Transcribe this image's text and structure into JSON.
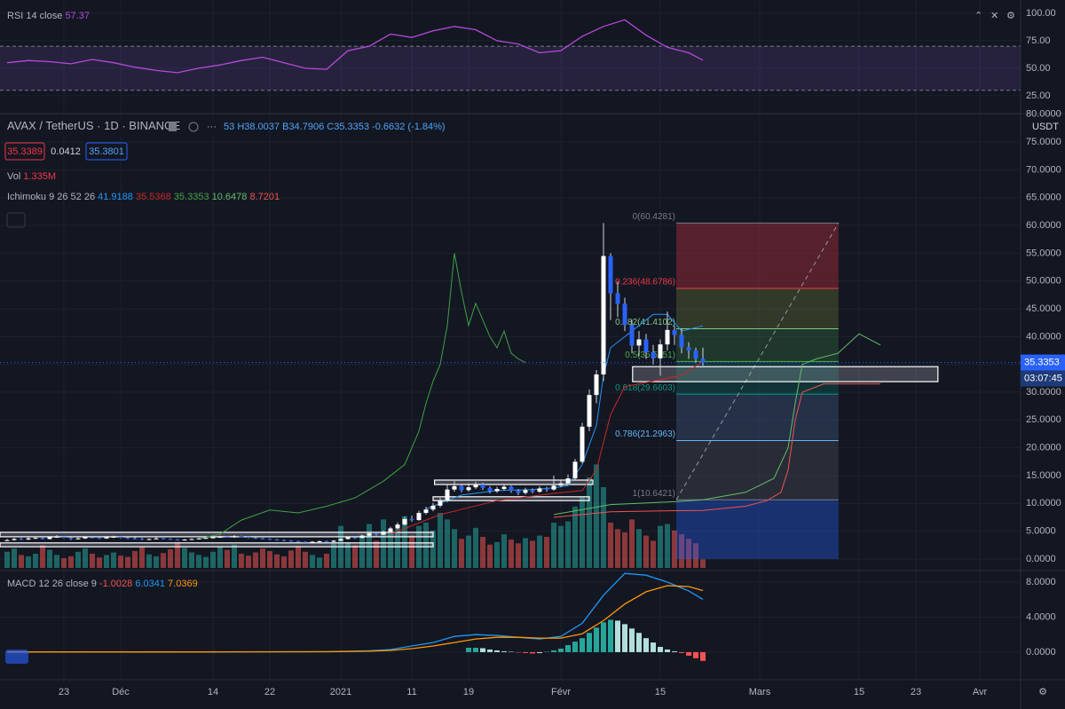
{
  "header": {
    "symbol": "AVAX / TetherUS",
    "interval": "1D",
    "exchange": "BINANCE",
    "open_cut": "53",
    "ohlc_labels": [
      "H",
      "B",
      "C"
    ],
    "change": "-0.6632 (-1.84%)",
    "bid": "35.3389",
    "spread": "0.0412",
    "ask": "35.3801",
    "vol_label": "Vol",
    "volume_label": "1.335M",
    "ichimoku_label": "Ichimoku 9 26 52 26",
    "countdown": "03:07:45",
    "currency": "USDT",
    "rsi_label": "RSI 14 close",
    "macd_label": "MACD 12 26 close 9"
  },
  "x_axis": {
    "xlim": [
      0,
      144
    ],
    "xticks": [
      {
        "value": 9,
        "label": "23"
      },
      {
        "value": 17,
        "label": "Déc"
      },
      {
        "value": 30,
        "label": "14"
      },
      {
        "value": 38,
        "label": "22"
      },
      {
        "value": 48,
        "label": "2021"
      },
      {
        "value": 58,
        "label": "11"
      },
      {
        "value": 66,
        "label": "19"
      },
      {
        "value": 79,
        "label": "Févr"
      },
      {
        "value": 93,
        "label": "15"
      },
      {
        "value": 107,
        "label": "Mars"
      },
      {
        "value": 121,
        "label": "15"
      },
      {
        "value": 129,
        "label": "23"
      },
      {
        "value": 138,
        "label": "Avr"
      }
    ]
  },
  "chart_data": [
    {
      "type": "line",
      "color": "#b54ad8",
      "band": [
        30,
        70
      ],
      "band_color": "rgba(126,87,194,0.18)",
      "ylim": [
        8.8,
        112
      ],
      "yticks": [
        {
          "value": 100,
          "label": "100.00"
        },
        {
          "value": 75,
          "label": "75.00"
        },
        {
          "value": 50,
          "label": "50.00"
        },
        {
          "value": 25,
          "label": "25.00"
        }
      ],
      "x": [
        1,
        4,
        7,
        10,
        13,
        16,
        19,
        22,
        25,
        28,
        31,
        34,
        37,
        40,
        43,
        46,
        49,
        52,
        55,
        58,
        61,
        64,
        67,
        70,
        73,
        76,
        79,
        82,
        85,
        88,
        91,
        94,
        97,
        99
      ],
      "values": [
        55,
        57,
        56,
        54,
        58,
        55,
        51,
        48,
        46,
        50,
        53,
        57,
        60,
        55,
        50,
        49,
        66,
        70,
        81,
        78,
        84,
        88,
        85,
        75,
        72,
        64,
        66,
        79,
        88,
        94,
        80,
        69,
        64,
        57.37
      ]
    },
    {
      "type": "candlestick",
      "ylim": [
        -1.6,
        79.8
      ],
      "up_color": "#ffffff",
      "down_color": "#2962ff",
      "volume_up_color": "rgba(38,166,154,0.55)",
      "volume_down_color": "rgba(239,83,80,0.55)",
      "volume_ylim": [
        0,
        70
      ],
      "grid": true,
      "yticks": [
        {
          "value": 0,
          "label": "0.0000"
        },
        {
          "value": 5,
          "label": "5.0000"
        },
        {
          "value": 10,
          "label": "10.0000"
        },
        {
          "value": 15,
          "label": "15.0000"
        },
        {
          "value": 20,
          "label": "20.0000"
        },
        {
          "value": 25,
          "label": "25.0000"
        },
        {
          "value": 30,
          "label": "30.0000"
        },
        {
          "value": 35,
          "label": "35.0000"
        },
        {
          "value": 40,
          "label": "40.0000"
        },
        {
          "value": 45,
          "label": "45.0000"
        },
        {
          "value": 50,
          "label": "50.0000"
        },
        {
          "value": 55,
          "label": "55.0000"
        },
        {
          "value": 60,
          "label": "60.0000"
        },
        {
          "value": 65,
          "label": "65.0000"
        },
        {
          "value": 70,
          "label": "70.0000"
        },
        {
          "value": 75,
          "label": "75.0000"
        },
        {
          "value": 80,
          "label": "80.0000"
        }
      ],
      "x": [
        1,
        2,
        3,
        4,
        5,
        6,
        7,
        8,
        9,
        10,
        11,
        12,
        13,
        14,
        15,
        16,
        17,
        18,
        19,
        20,
        21,
        22,
        23,
        24,
        25,
        26,
        27,
        28,
        29,
        30,
        31,
        32,
        33,
        34,
        35,
        36,
        37,
        38,
        39,
        40,
        41,
        42,
        43,
        44,
        45,
        46,
        47,
        48,
        49,
        50,
        51,
        52,
        53,
        54,
        55,
        56,
        57,
        58,
        59,
        60,
        61,
        62,
        63,
        64,
        65,
        66,
        67,
        68,
        69,
        70,
        71,
        72,
        73,
        74,
        75,
        76,
        77,
        78,
        79,
        80,
        81,
        82,
        83,
        84,
        85,
        86,
        87,
        88,
        89,
        90,
        91,
        92,
        93,
        94,
        95,
        96,
        97,
        98,
        99
      ],
      "open": [
        3.3,
        3.4,
        3.6,
        3.5,
        3.7,
        3.8,
        3.6,
        3.9,
        4.0,
        3.8,
        3.6,
        3.7,
        3.9,
        3.8,
        3.7,
        3.9,
        4.0,
        3.8,
        3.7,
        3.6,
        3.5,
        3.6,
        3.7,
        3.6,
        3.5,
        3.4,
        3.5,
        3.6,
        3.7,
        3.8,
        3.9,
        4.0,
        3.9,
        4.1,
        4.0,
        3.8,
        3.7,
        3.6,
        3.5,
        3.4,
        3.3,
        3.2,
        3.1,
        3.0,
        3.1,
        3.2,
        3.1,
        3.3,
        3.6,
        3.9,
        3.8,
        4.2,
        4.6,
        4.4,
        4.9,
        5.5,
        6.2,
        7.2,
        7.0,
        8.3,
        8.9,
        9.6,
        10.5,
        12.5,
        13.1,
        12.4,
        12.9,
        13.4,
        12.8,
        12.2,
        12.6,
        13.0,
        12.3,
        11.9,
        12.4,
        12.1,
        12.7,
        12.5,
        13.2,
        13.6,
        14.5,
        17.5,
        23.8,
        29.5,
        33.2,
        54.5,
        47.8,
        45.9,
        42.1,
        38.4,
        39.5,
        37.2,
        36.1,
        38.6,
        41.2,
        40.3,
        38.1,
        37.5,
        35.9985
      ],
      "high": [
        3.6,
        3.8,
        3.8,
        3.9,
        4.0,
        4.0,
        4.1,
        4.3,
        4.1,
        3.9,
        3.9,
        4.1,
        4.0,
        4.0,
        4.1,
        4.2,
        4.1,
        3.9,
        3.9,
        3.8,
        3.7,
        3.9,
        3.8,
        3.7,
        3.6,
        3.6,
        3.7,
        3.8,
        3.9,
        4.1,
        4.2,
        4.1,
        4.3,
        4.2,
        4.1,
        3.9,
        3.8,
        3.7,
        3.6,
        3.5,
        3.4,
        3.3,
        3.2,
        3.2,
        3.3,
        3.3,
        3.4,
        3.8,
        4.1,
        4.1,
        4.4,
        4.8,
        4.8,
        5.1,
        5.8,
        6.6,
        7.6,
        7.8,
        8.7,
        9.4,
        10.1,
        11.0,
        13.4,
        14.0,
        13.5,
        13.6,
        13.9,
        13.7,
        13.1,
        13.0,
        13.5,
        13.2,
        12.6,
        12.8,
        12.7,
        13.1,
        13.0,
        15.0,
        14.2,
        15.2,
        18.0,
        24.5,
        30.5,
        34.0,
        60.4281,
        55.0,
        50.0,
        47.0,
        43.0,
        41.0,
        40.5,
        38.5,
        39.5,
        44.5,
        42.0,
        41.5,
        39.0,
        38.0,
        38.0037
      ],
      "low": [
        3.2,
        3.3,
        3.4,
        3.4,
        3.6,
        3.5,
        3.5,
        3.8,
        3.7,
        3.4,
        3.5,
        3.6,
        3.7,
        3.6,
        3.6,
        3.8,
        3.7,
        3.6,
        3.5,
        3.4,
        3.4,
        3.5,
        3.5,
        3.4,
        3.3,
        3.3,
        3.4,
        3.5,
        3.6,
        3.7,
        3.8,
        3.8,
        3.8,
        3.9,
        3.7,
        3.6,
        3.5,
        3.4,
        3.3,
        3.2,
        3.1,
        3.0,
        2.9,
        2.9,
        3.0,
        3.0,
        3.0,
        3.2,
        3.5,
        3.6,
        3.7,
        4.1,
        4.2,
        4.3,
        4.8,
        5.3,
        6.0,
        6.7,
        6.9,
        8.0,
        8.6,
        9.3,
        10.2,
        12.1,
        12.0,
        12.1,
        12.6,
        12.4,
        11.8,
        11.9,
        12.3,
        11.9,
        11.5,
        11.6,
        11.8,
        11.9,
        12.1,
        12.3,
        12.9,
        13.3,
        14.2,
        17.2,
        23.0,
        28.0,
        32.0,
        43.0,
        43.5,
        41.0,
        37.0,
        36.5,
        36.0,
        35.0,
        33.0,
        37.5,
        38.5,
        37.0,
        36.0,
        35.2,
        34.7906
      ],
      "close": [
        3.4,
        3.6,
        3.5,
        3.7,
        3.8,
        3.6,
        3.9,
        4.0,
        3.8,
        3.6,
        3.7,
        3.9,
        3.8,
        3.7,
        3.9,
        4.0,
        3.8,
        3.7,
        3.6,
        3.5,
        3.6,
        3.7,
        3.6,
        3.5,
        3.4,
        3.5,
        3.6,
        3.7,
        3.8,
        3.9,
        4.0,
        3.9,
        4.1,
        4.0,
        3.8,
        3.7,
        3.6,
        3.5,
        3.4,
        3.3,
        3.2,
        3.1,
        3.0,
        3.1,
        3.2,
        3.1,
        3.3,
        3.6,
        3.9,
        3.8,
        4.2,
        4.6,
        4.4,
        4.9,
        5.5,
        6.2,
        7.2,
        7.0,
        8.3,
        8.9,
        9.6,
        10.5,
        12.5,
        13.1,
        12.4,
        12.9,
        13.4,
        12.8,
        12.2,
        12.6,
        13.0,
        12.3,
        11.9,
        12.4,
        12.1,
        12.7,
        12.5,
        13.2,
        13.6,
        14.5,
        17.5,
        23.8,
        29.5,
        33.2,
        54.5,
        47.8,
        45.9,
        42.1,
        38.4,
        39.5,
        37.2,
        36.1,
        38.6,
        41.2,
        40.3,
        38.1,
        37.5,
        35.9985,
        35.3353
      ],
      "volume": [
        2.5,
        3,
        2,
        1.8,
        2.2,
        3.5,
        2.8,
        2,
        1.5,
        1.8,
        2.5,
        3,
        2.2,
        1.6,
        2,
        2.4,
        1.9,
        1.7,
        2.6,
        3.2,
        2.1,
        1.8,
        2.3,
        2.9,
        4,
        3.1,
        2.4,
        2,
        1.7,
        2.5,
        3.3,
        2.8,
        3.6,
        2.2,
        1.9,
        2.4,
        3,
        2.6,
        2.1,
        1.8,
        2.7,
        3.4,
        2.5,
        2,
        1.6,
        2.2,
        3.8,
        6.5,
        4,
        3.5,
        5,
        6.8,
        4.2,
        7.5,
        5.5,
        6,
        8,
        5,
        6.5,
        7,
        5.8,
        8.5,
        7.5,
        6,
        4.5,
        5,
        6.2,
        4.8,
        3.6,
        4,
        5.2,
        4.4,
        3.8,
        4.6,
        4.2,
        5,
        4.8,
        7,
        6.5,
        7.2,
        9.5,
        11,
        14,
        16,
        12.5,
        7,
        6,
        5.5,
        7.5,
        6,
        5,
        4.2,
        6.5,
        6.8,
        5.8,
        5.2,
        4.5,
        3.8,
        1.335
      ],
      "lines": [
        {
          "color": "#2196f3",
          "x": [
            60,
            65,
            70,
            75,
            78,
            80,
            82,
            84,
            85,
            86,
            88,
            90,
            92,
            94,
            96,
            99
          ],
          "values": [
            9,
            11.5,
            12.3,
            12.5,
            12.8,
            13.2,
            17,
            24,
            33,
            38,
            40,
            42,
            44,
            44,
            41,
            41.9188
          ]
        },
        {
          "color": "#c62828",
          "x": [
            55,
            62,
            70,
            78,
            82,
            84,
            86,
            88,
            92,
            96,
            99
          ],
          "values": [
            4.5,
            8,
            10.5,
            11.8,
            12.3,
            16,
            26,
            31,
            32,
            33,
            35.5368
          ]
        },
        {
          "color": "#43a047",
          "x": [
            28,
            31,
            34,
            38,
            42,
            46,
            50,
            54,
            57,
            59,
            60,
            61,
            62,
            63,
            64,
            65,
            66,
            67,
            68,
            69,
            70,
            71,
            72,
            73,
            74
          ],
          "values": [
            3.6,
            4.5,
            7,
            8.8,
            8.3,
            9.5,
            11,
            14,
            17,
            23,
            28,
            32,
            35,
            42,
            55,
            48,
            42,
            46,
            43,
            40,
            38,
            41,
            37,
            36,
            35.3353
          ]
        },
        {
          "color": "#66bb6a",
          "x": [
            78,
            86,
            95,
            99,
            105,
            109,
            111,
            112,
            113,
            115,
            118,
            121,
            124
          ],
          "values": [
            8,
            9.8,
            10.3,
            10.6478,
            12,
            14.5,
            20,
            28,
            35,
            36,
            37,
            40.5,
            38.5
          ]
        },
        {
          "color": "#ef5350",
          "x": [
            78,
            86,
            95,
            99,
            105,
            108,
            110,
            111,
            112,
            113,
            116,
            124
          ],
          "values": [
            7.5,
            8.5,
            8.7,
            8.7201,
            9.5,
            10.5,
            12,
            16,
            25,
            30,
            31.5,
            31.5
          ]
        }
      ],
      "fib": {
        "x": [
          95.25,
          118.1
        ],
        "prices": [
          60.4281,
          48.6786,
          41.4102,
          35.5351,
          29.6603,
          21.2963,
          10.6421
        ],
        "labels": [
          "0(60.4281)",
          "0.236(48.6786)",
          "0.382(41.4102)",
          "0.5(35.5351)",
          "0.618(29.6603)",
          "0.786(21.2963)",
          "1(10.6421)"
        ],
        "line_colors": [
          "#787b86",
          "#f23645",
          "#81c784",
          "#4caf50",
          "#089981",
          "#64b5f6",
          "#787b86"
        ],
        "band_colors": [
          "rgba(242,54,69,0.30)",
          "rgba(120,140,60,0.30)",
          "rgba(76,175,80,0.22)",
          "rgba(8,153,129,0.22)",
          "rgba(80,110,160,0.30)",
          "rgba(120,123,134,0.22)",
          "rgba(41,98,255,0.35)"
        ]
      },
      "boxes": [
        {
          "x": [
            89.1,
            132.1
          ],
          "y": [
            31.9,
            34.6
          ]
        },
        {
          "x": [
            61.2,
            83.5
          ],
          "y": [
            13.4,
            14.2
          ]
        },
        {
          "x": [
            61,
            83
          ],
          "y": [
            10.5,
            11.2
          ]
        },
        {
          "x": [
            0,
            61
          ],
          "y": [
            4.0,
            4.8
          ]
        },
        {
          "x": [
            0,
            61
          ],
          "y": [
            2.2,
            2.9
          ]
        }
      ]
    },
    {
      "type": "macd",
      "macd_color": "#2196f3",
      "signal_color": "#ff9800",
      "ylim": [
        -3.05,
        9.12
      ],
      "yticks": [
        {
          "value": 8,
          "label": "8.0000"
        },
        {
          "value": 4,
          "label": "4.0000"
        },
        {
          "value": 0,
          "label": "0.0000"
        }
      ],
      "x": [
        1,
        10,
        19,
        28,
        37,
        46,
        52,
        55,
        58,
        61,
        64,
        67,
        70,
        73,
        76,
        79,
        82,
        85,
        88,
        91,
        94,
        97,
        99
      ],
      "macd": [
        0.02,
        0.03,
        0.01,
        0.02,
        0.04,
        0.05,
        0.15,
        0.3,
        0.7,
        1.1,
        1.8,
        2.0,
        1.9,
        1.7,
        1.5,
        1.8,
        3.3,
        6.5,
        9.0,
        8.8,
        8.0,
        7.0,
        6.0341
      ],
      "signal": [
        0.02,
        0.02,
        0.02,
        0.02,
        0.03,
        0.04,
        0.1,
        0.2,
        0.4,
        0.7,
        1.1,
        1.5,
        1.7,
        1.7,
        1.6,
        1.6,
        2.1,
        3.6,
        5.5,
        6.9,
        7.6,
        7.5,
        7.0369
      ],
      "hist_x": [
        66,
        67,
        68,
        69,
        70,
        71,
        72,
        73,
        74,
        75,
        76,
        77,
        78,
        79,
        80,
        81,
        82,
        83,
        84,
        85,
        86,
        87,
        88,
        89,
        90,
        91,
        92,
        93,
        94,
        95,
        96,
        97,
        98,
        99
      ],
      "hist": [
        0.5,
        0.5,
        0.45,
        0.3,
        0.2,
        0.1,
        0.05,
        -0.05,
        -0.1,
        -0.15,
        -0.1,
        0.05,
        0.2,
        0.4,
        0.8,
        1.2,
        1.6,
        2.2,
        2.8,
        3.4,
        3.7,
        3.6,
        3.2,
        2.7,
        2.2,
        1.6,
        1.1,
        0.6,
        0.3,
        0.1,
        -0.1,
        -0.4,
        -0.7,
        -1.0028
      ]
    }
  ]
}
